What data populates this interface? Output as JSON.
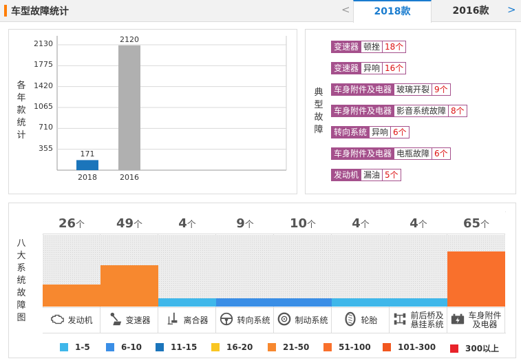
{
  "header": {
    "title": "车型故障统计",
    "prev_icon": "<",
    "next_icon": ">",
    "tabs": [
      {
        "label": "2018款",
        "active": true
      },
      {
        "label": "2016款",
        "active": false
      }
    ]
  },
  "yearly": {
    "ylabel": "各年款统计",
    "chart_data": {
      "type": "bar",
      "categories": [
        "2018",
        "2016"
      ],
      "values": [
        171,
        2120
      ],
      "ylabel": "各年款统计",
      "yticks": [
        355,
        710,
        1065,
        1420,
        1775,
        2130
      ],
      "ylim": [
        0,
        2130
      ],
      "grid": true,
      "colors": [
        "#1b75bb",
        "#b0b0b0"
      ]
    },
    "value_labels": [
      "171",
      "2120"
    ],
    "tick_labels": [
      "2130",
      "1775",
      "1420",
      "1065",
      "710",
      "355"
    ]
  },
  "typical": {
    "label": "典型故障",
    "items": [
      {
        "category": "变速器",
        "issue": "顿挫",
        "count": "18个"
      },
      {
        "category": "变速器",
        "issue": "异响",
        "count": "16个"
      },
      {
        "category": "车身附件及电器",
        "issue": "玻璃开裂",
        "count": "9个"
      },
      {
        "category": "车身附件及电器",
        "issue": "影音系统故障",
        "count": "8个"
      },
      {
        "category": "转向系统",
        "issue": "异响",
        "count": "6个"
      },
      {
        "category": "车身附件及电器",
        "issue": "电瓶故障",
        "count": "6个"
      },
      {
        "category": "发动机",
        "issue": "漏油",
        "count": "5个"
      }
    ]
  },
  "systems": {
    "label": "八大系统故障图",
    "unit": "个",
    "items": [
      {
        "count": "26",
        "value": 26,
        "name": "发动机",
        "icon": "engine-icon",
        "color": "#f7882f"
      },
      {
        "count": "49",
        "value": 49,
        "name": "变速器",
        "icon": "gearshift-icon",
        "color": "#f7882f"
      },
      {
        "count": "4",
        "value": 4,
        "name": "离合器",
        "icon": "clutch-pedal-icon",
        "color": "#3fb7ea"
      },
      {
        "count": "9",
        "value": 9,
        "name": "转向系统",
        "icon": "steering-wheel-icon",
        "color": "#3a8ee6"
      },
      {
        "count": "10",
        "value": 10,
        "name": "制动系统",
        "icon": "brake-disc-icon",
        "color": "#3a8ee6"
      },
      {
        "count": "4",
        "value": 4,
        "name": "轮胎",
        "icon": "tire-icon",
        "color": "#3fb7ea"
      },
      {
        "count": "4",
        "value": 4,
        "name": "前后桥及悬挂系统",
        "name_lines": [
          "前后桥及",
          "悬挂系统"
        ],
        "icon": "axle-icon",
        "color": "#3fb7ea"
      },
      {
        "count": "65",
        "value": 65,
        "name": "车身附件及电器",
        "name_lines": [
          "车身附件",
          "及电器"
        ],
        "icon": "battery-icon",
        "color": "#f9702c"
      }
    ]
  },
  "legend": [
    {
      "label": "1-5",
      "color": "#3fb7ea"
    },
    {
      "label": "6-10",
      "color": "#3a8ee6"
    },
    {
      "label": "11-15",
      "color": "#1b75bb"
    },
    {
      "label": "16-20",
      "color": "#f9c623"
    },
    {
      "label": "21-50",
      "color": "#f7882f"
    },
    {
      "label": "51-100",
      "color": "#f9702c"
    },
    {
      "label": "101-300",
      "color": "#f2571f"
    },
    {
      "label": "300以上",
      "color": "#e8232a"
    }
  ]
}
